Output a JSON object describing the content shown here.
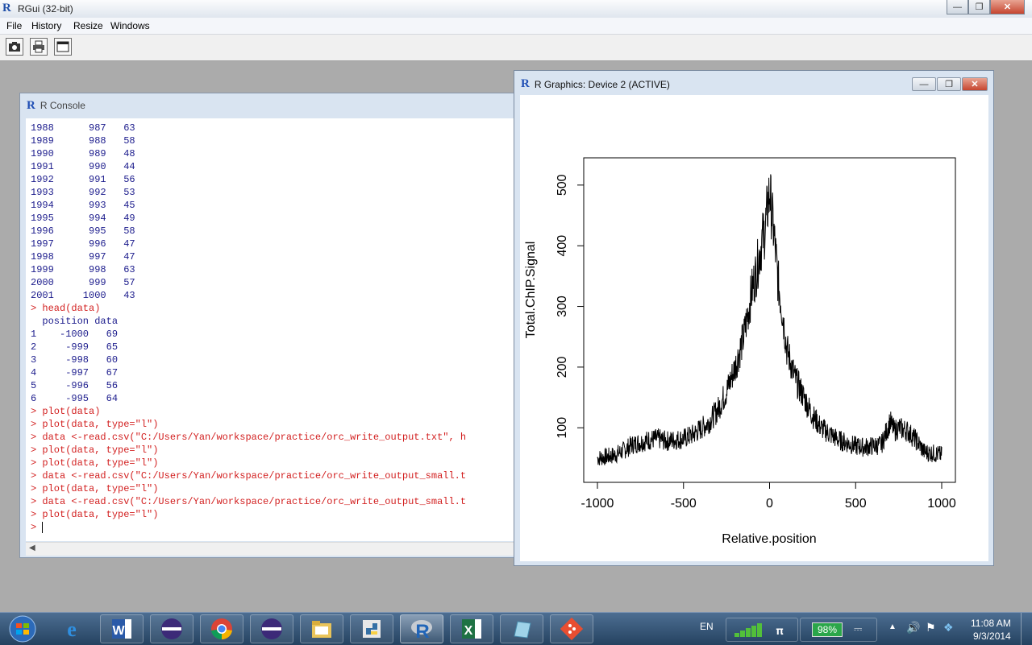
{
  "window": {
    "title": "RGui (32-bit)"
  },
  "menu": [
    "File",
    "History",
    "Resize",
    "Windows"
  ],
  "toolbar": {
    "icons": [
      "camera-icon",
      "printer-icon",
      "window-icon"
    ]
  },
  "console": {
    "title": "R Console",
    "lines": [
      {
        "t": "1988      987   63",
        "k": "out"
      },
      {
        "t": "1989      988   58",
        "k": "out"
      },
      {
        "t": "1990      989   48",
        "k": "out"
      },
      {
        "t": "1991      990   44",
        "k": "out"
      },
      {
        "t": "1992      991   56",
        "k": "out"
      },
      {
        "t": "1993      992   53",
        "k": "out"
      },
      {
        "t": "1994      993   45",
        "k": "out"
      },
      {
        "t": "1995      994   49",
        "k": "out"
      },
      {
        "t": "1996      995   58",
        "k": "out"
      },
      {
        "t": "1997      996   47",
        "k": "out"
      },
      {
        "t": "1998      997   47",
        "k": "out"
      },
      {
        "t": "1999      998   63",
        "k": "out"
      },
      {
        "t": "2000      999   57",
        "k": "out"
      },
      {
        "t": "2001     1000   43",
        "k": "out"
      },
      {
        "t": "> head(data)",
        "k": "cmd"
      },
      {
        "t": "  position data",
        "k": "out"
      },
      {
        "t": "1    -1000   69",
        "k": "out"
      },
      {
        "t": "2     -999   65",
        "k": "out"
      },
      {
        "t": "3     -998   60",
        "k": "out"
      },
      {
        "t": "4     -997   67",
        "k": "out"
      },
      {
        "t": "5     -996   56",
        "k": "out"
      },
      {
        "t": "6     -995   64",
        "k": "out"
      },
      {
        "t": "> plot(data)",
        "k": "cmd"
      },
      {
        "t": "> plot(data, type=\"l\")",
        "k": "cmd"
      },
      {
        "t": "> data <-read.csv(\"C:/Users/Yan/workspace/practice/orc_write_output.txt\", h",
        "k": "cmd"
      },
      {
        "t": "> plot(data, type=\"l\")",
        "k": "cmd"
      },
      {
        "t": "> plot(data, type=\"l\")",
        "k": "cmd"
      },
      {
        "t": "> data <-read.csv(\"C:/Users/Yan/workspace/practice/orc_write_output_small.t",
        "k": "cmd"
      },
      {
        "t": "> plot(data, type=\"l\")",
        "k": "cmd"
      },
      {
        "t": "> data <-read.csv(\"C:/Users/Yan/workspace/practice/orc_write_output_small.t",
        "k": "cmd"
      },
      {
        "t": "> plot(data, type=\"l\")",
        "k": "cmd"
      }
    ],
    "prompt": "> "
  },
  "graphics": {
    "title": "R Graphics: Device 2 (ACTIVE)"
  },
  "chart_data": {
    "type": "line",
    "xlabel": "Relative.position",
    "ylabel": "Total.ChIP.Signal",
    "xlim": [
      -1000,
      1000
    ],
    "ylim": [
      30,
      525
    ],
    "xticks": [
      -1000,
      -500,
      0,
      500,
      1000
    ],
    "yticks": [
      100,
      200,
      300,
      400,
      500
    ],
    "series": [
      {
        "x": [
          -1000,
          -950,
          -900,
          -850,
          -800,
          -750,
          -700,
          -650,
          -600,
          -550,
          -500,
          -450,
          -400,
          -350,
          -300,
          -250,
          -200,
          -150,
          -100,
          -75,
          -50,
          -25,
          0,
          25,
          50,
          75,
          100,
          150,
          200,
          250,
          300,
          350,
          400,
          450,
          500,
          550,
          600,
          650,
          700,
          725,
          750,
          800,
          850,
          900,
          950,
          1000
        ],
        "y": [
          50,
          52,
          55,
          62,
          72,
          76,
          80,
          82,
          78,
          80,
          82,
          88,
          98,
          110,
          130,
          160,
          200,
          250,
          330,
          360,
          400,
          430,
          490,
          420,
          340,
          290,
          230,
          180,
          150,
          120,
          100,
          90,
          80,
          75,
          70,
          68,
          70,
          72,
          110,
          95,
          100,
          95,
          80,
          60,
          58,
          55
        ]
      }
    ]
  },
  "taskbar": {
    "items": [
      "start-orb-icon",
      "internet-explorer-icon",
      "word-icon",
      "eclipse-icon",
      "chrome-icon",
      "eclipse-icon",
      "file-explorer-icon",
      "python-icon",
      "r-icon",
      "excel-icon",
      "notepad-icon",
      "git-icon"
    ],
    "language": "EN",
    "battery": "98%",
    "time": "11:08 AM",
    "date": "9/3/2014"
  }
}
